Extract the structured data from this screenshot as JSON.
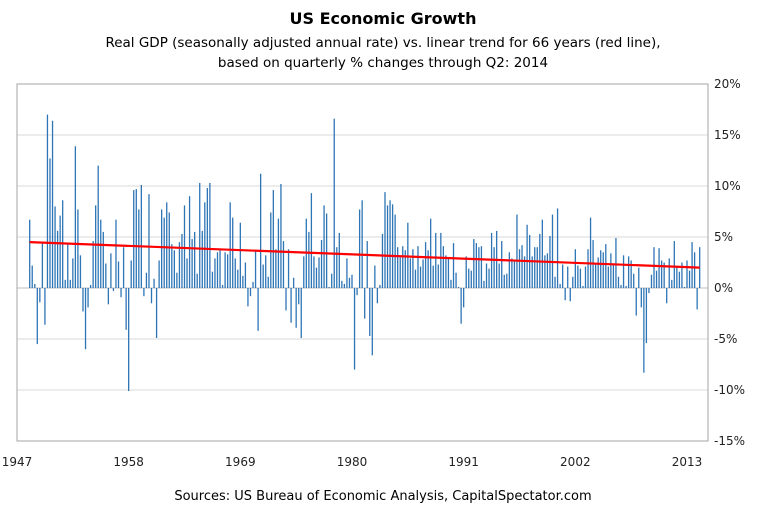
{
  "chart_data": {
    "type": "bar",
    "title": "US Economic Growth",
    "subtitle_lines": [
      "Real GDP (seasonally adjusted annual rate) vs. linear trend for 66 years (red line),",
      "based on quarterly % changes through Q2: 2014"
    ],
    "source": "Sources: US Bureau of Economic Analysis, CapitalSpectator.com",
    "start_quarter": "1948Q2",
    "frequency": "quarterly",
    "unit": "%",
    "values": [
      6.7,
      2.2,
      0.4,
      -5.5,
      -1.4,
      4.4,
      -3.6,
      17.0,
      12.7,
      16.4,
      8.0,
      5.6,
      7.1,
      8.6,
      0.8,
      4.3,
      0.8,
      2.9,
      13.9,
      7.7,
      3.2,
      -2.3,
      -6.0,
      -1.9,
      0.3,
      4.6,
      8.1,
      12.0,
      6.7,
      5.5,
      2.4,
      -1.6,
      3.4,
      -0.3,
      6.7,
      2.6,
      -0.9,
      4.0,
      -4.1,
      -10.1,
      2.7,
      9.6,
      9.7,
      7.7,
      10.1,
      -0.8,
      1.5,
      9.2,
      -1.5,
      0.9,
      -4.9,
      2.7,
      7.7,
      6.9,
      8.4,
      7.4,
      4.3,
      3.7,
      1.5,
      4.5,
      5.3,
      8.1,
      2.9,
      9.0,
      4.8,
      5.5,
      1.4,
      10.3,
      5.6,
      8.4,
      9.8,
      10.3,
      1.6,
      2.9,
      3.5,
      3.7,
      0.3,
      3.5,
      3.3,
      8.4,
      6.9,
      2.9,
      1.8,
      6.4,
      1.2,
      2.5,
      -1.8,
      -0.8,
      0.6,
      3.6,
      -4.2,
      11.2,
      2.3,
      3.2,
      1.1,
      7.4,
      9.6,
      3.8,
      6.8,
      10.2,
      4.6,
      -2.2,
      3.8,
      -3.4,
      1.0,
      -3.9,
      -1.6,
      -4.9,
      3.1,
      6.8,
      5.5,
      9.3,
      3.1,
      2.0,
      3.0,
      4.7,
      8.1,
      7.3,
      0.1,
      1.4,
      16.6,
      4.0,
      5.4,
      0.7,
      0.4,
      2.9,
      1.0,
      1.3,
      -8.0,
      -0.7,
      7.7,
      8.6,
      -3.0,
      4.6,
      -4.7,
      -6.6,
      2.2,
      -1.5,
      0.3,
      5.3,
      9.4,
      8.1,
      8.6,
      8.2,
      7.2,
      4.0,
      3.0,
      4.1,
      3.7,
      6.4,
      2.9,
      3.8,
      1.8,
      4.1,
      2.1,
      2.8,
      4.5,
      3.7,
      6.8,
      2.2,
      5.4,
      2.3,
      5.4,
      4.1,
      3.2,
      3.0,
      0.8,
      4.4,
      1.5,
      0.1,
      -3.5,
      -1.9,
      3.1,
      1.9,
      1.7,
      4.8,
      4.4,
      4.0,
      4.1,
      0.7,
      2.4,
      1.9,
      5.4,
      4.0,
      5.6,
      2.4,
      4.6,
      1.3,
      1.4,
      3.5,
      2.9,
      2.8,
      7.2,
      3.8,
      4.2,
      3.1,
      6.2,
      5.2,
      3.1,
      4.0,
      4.0,
      5.3,
      6.7,
      3.2,
      3.4,
      5.1,
      7.2,
      1.1,
      7.8,
      0.4,
      2.3,
      -1.2,
      2.1,
      -1.3,
      1.1,
      3.8,
      2.2,
      1.9,
      0.2,
      2.1,
      3.8,
      6.9,
      4.7,
      2.4,
      3.0,
      3.7,
      3.5,
      4.3,
      2.1,
      3.4,
      2.3,
      4.9,
      1.1,
      0.3,
      3.2,
      0.2,
      3.1,
      2.7,
      1.4,
      -2.7,
      2.0,
      -1.9,
      -8.3,
      -5.4,
      -0.5,
      1.3,
      4.0,
      1.7,
      3.9,
      2.7,
      2.5,
      -1.5,
      2.9,
      0.8,
      4.6,
      2.2,
      1.6,
      2.5,
      0.1,
      2.7,
      1.7,
      4.5,
      3.5,
      -2.1,
      4.0
    ],
    "trend": {
      "start": 4.5,
      "end": 2.0
    },
    "xlim": [
      1947,
      2015
    ],
    "x_ticks": [
      "1947",
      "1958",
      "1969",
      "1980",
      "1991",
      "2002",
      "2013"
    ],
    "ylim": [
      -15,
      20
    ],
    "y_ticks": [
      "20%",
      "15%",
      "10%",
      "5%",
      "0%",
      "-5%",
      "-10%",
      "-15%"
    ],
    "y_axis_side": "right",
    "grid": true,
    "colors": {
      "bars": "#2e75b6",
      "trend": "#ff0000",
      "grid": "#d9d9d9"
    }
  }
}
